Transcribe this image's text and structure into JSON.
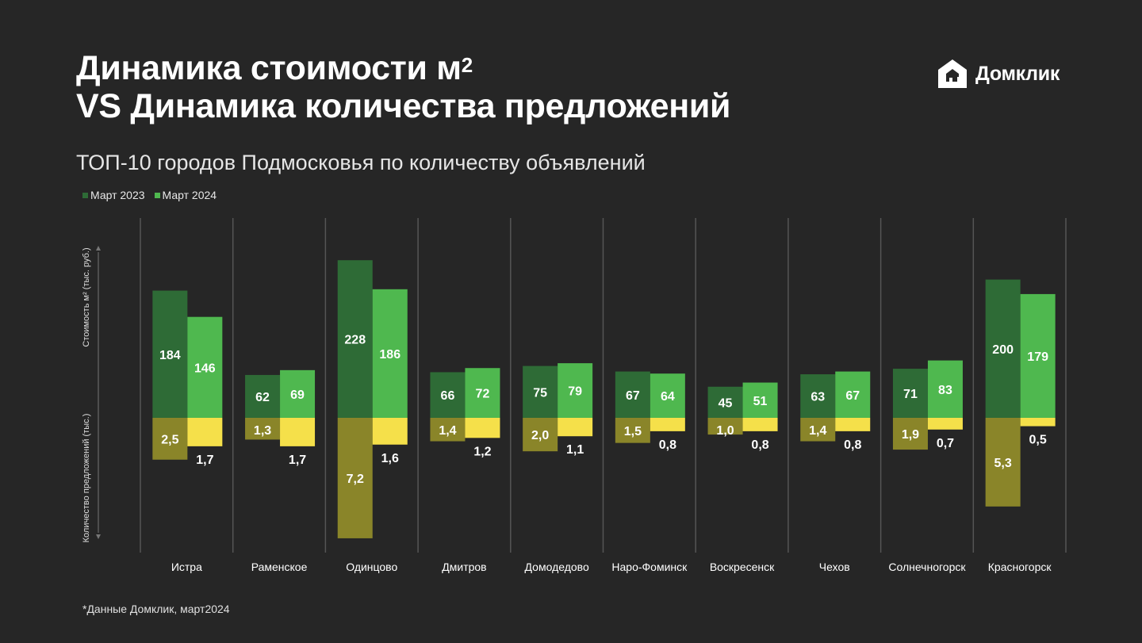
{
  "header": {
    "title_line1": "Динамика стоимости м",
    "title_sup": "2",
    "title_line2": "VS Динамика количества предложений",
    "subtitle": "ТОП-10 городов Подмосковья по количеству объявлений"
  },
  "logo": {
    "text": "Домклик",
    "icon": "domclick-house-icon"
  },
  "legend": [
    {
      "label": "Март 2023",
      "color": "#2e6b36"
    },
    {
      "label": "Март 2024",
      "color": "#4fb84f"
    }
  ],
  "footnote": "*Данные Домклик, март2024",
  "colors": {
    "price_2023": "#2e6b36",
    "price_2024": "#4fb84f",
    "offers_2023": "#8a8529",
    "offers_2024": "#f5e04a",
    "separator": "#555555",
    "axis": "#777777"
  },
  "chart_data": {
    "type": "bar",
    "categories": [
      "Истра",
      "Раменское",
      "Одинцово",
      "Дмитров",
      "Домодедово",
      "Наро-Фоминск",
      "Воскресенск",
      "Чехов",
      "Солнечногорск",
      "Красногорск"
    ],
    "ylabel_top": "Стоимость м² (тыс. руб.)",
    "ylabel_bottom": "Количество предложений (тыс.)",
    "price_series": [
      {
        "name": "Март 2023",
        "values": [
          184,
          62,
          228,
          66,
          75,
          67,
          45,
          63,
          71,
          200
        ],
        "labels": [
          "184",
          "62",
          "228",
          "66",
          "75",
          "67",
          "45",
          "63",
          "71",
          "200"
        ]
      },
      {
        "name": "Март 2024",
        "values": [
          146,
          69,
          186,
          72,
          79,
          64,
          51,
          67,
          83,
          179
        ],
        "labels": [
          "146",
          "69",
          "186",
          "72",
          "79",
          "64",
          "51",
          "67",
          "83",
          "179"
        ]
      }
    ],
    "offers_series": [
      {
        "name": "Март 2023",
        "values": [
          2.5,
          1.3,
          7.2,
          1.4,
          2.0,
          1.5,
          1.0,
          1.4,
          1.9,
          5.3
        ],
        "labels": [
          "2,5",
          "1,3",
          "7,2",
          "1,4",
          "2,0",
          "1,5",
          "1,0",
          "1,4",
          "1,9",
          "5,3"
        ]
      },
      {
        "name": "Март 2024",
        "values": [
          1.7,
          1.7,
          1.6,
          1.2,
          1.1,
          0.8,
          0.8,
          0.8,
          0.7,
          0.5
        ],
        "labels": [
          "1,7",
          "1,7",
          "1,6",
          "1,2",
          "1,1",
          "0,8",
          "0,8",
          "0,8",
          "0,7",
          "0,5"
        ]
      }
    ]
  }
}
